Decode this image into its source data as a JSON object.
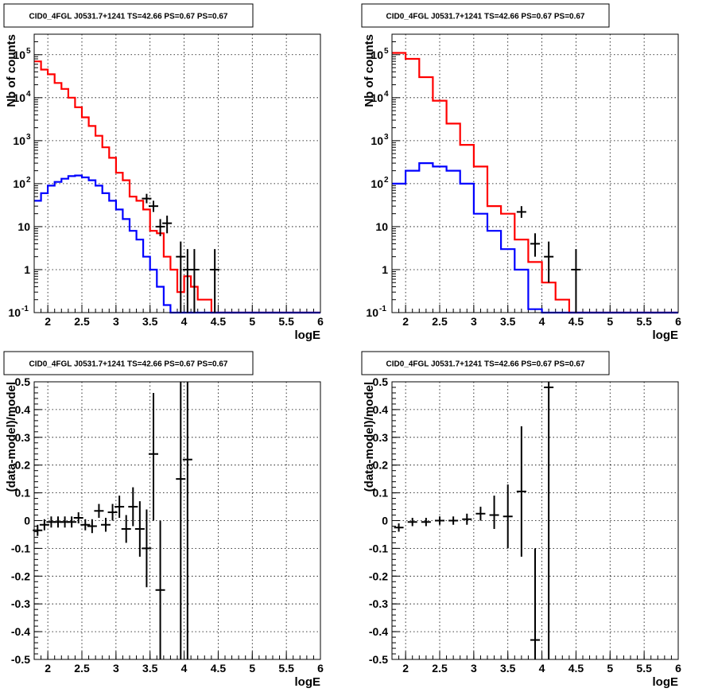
{
  "chart_data": [
    {
      "panel": "top-left",
      "type": "step-histogram",
      "title": "CID0_4FGL J0531.7+1241 TS=42.66 PS=0.67 PS=0.67",
      "xlabel": "logE",
      "ylabel": "Nb of counts",
      "xlim": [
        1.8,
        6
      ],
      "ylim": [
        0.1,
        300000
      ],
      "yscale": "log",
      "grid": true,
      "xticks": [
        "2",
        "2.5",
        "3",
        "3.5",
        "4",
        "4.5",
        "5",
        "5.5",
        "6"
      ],
      "yticks": [
        {
          "value": 0.1,
          "label": "10",
          "exp": "-1"
        },
        {
          "value": 1,
          "label": "1",
          "exp": ""
        },
        {
          "value": 10,
          "label": "10",
          "exp": ""
        },
        {
          "value": 100,
          "label": "10",
          "exp": "2"
        },
        {
          "value": 1000,
          "label": "10",
          "exp": "3"
        },
        {
          "value": 10000,
          "label": "10",
          "exp": "4"
        },
        {
          "value": 100000,
          "label": "10",
          "exp": "5"
        }
      ],
      "bin_edges": [
        1.8,
        1.9,
        2.0,
        2.1,
        2.2,
        2.3,
        2.4,
        2.5,
        2.6,
        2.7,
        2.8,
        2.9,
        3.0,
        3.1,
        3.2,
        3.3,
        3.4,
        3.5,
        3.6,
        3.7,
        3.8,
        3.9,
        4.0,
        4.1,
        4.2,
        4.3,
        4.4,
        4.5,
        4.6,
        4.7,
        4.8,
        4.9,
        5.0,
        5.1,
        5.2,
        5.3,
        5.4,
        5.5,
        5.6,
        5.7,
        5.8,
        5.9,
        6.0
      ],
      "series": [
        {
          "color": "#ff0000",
          "values": [
            70000,
            45000,
            35000,
            22000,
            16000,
            10000,
            6000,
            3500,
            2200,
            1300,
            700,
            400,
            180,
            120,
            50,
            40,
            25,
            8,
            7,
            2,
            1,
            0.3,
            0.7,
            0.4,
            0.2,
            0.2,
            0.1,
            0.1,
            0.1,
            0.1,
            0.1,
            0.1,
            0.1,
            0.1,
            0.1,
            0.1,
            0.1,
            0.1,
            0.1,
            0.1,
            0.1,
            0.1
          ]
        },
        {
          "color": "#0000ff",
          "values": [
            40,
            60,
            90,
            110,
            130,
            150,
            155,
            140,
            120,
            90,
            60,
            40,
            25,
            15,
            8,
            5,
            2,
            1,
            0.4,
            0.15,
            0.1,
            0.1,
            0.1,
            0.1,
            0.1,
            0.1,
            0.1,
            0.1,
            0.1,
            0.1,
            0.1,
            0.1,
            0.1,
            0.1,
            0.1,
            0.1,
            0.1,
            0.1,
            0.1,
            0.1,
            0.1,
            0.1
          ]
        }
      ],
      "points": [
        {
          "x": 3.45,
          "y": 45,
          "ylo": 35,
          "yhi": 58
        },
        {
          "x": 3.55,
          "y": 30,
          "ylo": 22,
          "yhi": 40
        },
        {
          "x": 3.65,
          "y": 10,
          "ylo": 6,
          "yhi": 15
        },
        {
          "x": 3.75,
          "y": 12,
          "ylo": 7,
          "yhi": 18
        },
        {
          "x": 3.95,
          "y": 2,
          "ylo": 0.1,
          "yhi": 4.5
        },
        {
          "x": 4.05,
          "y": 1,
          "ylo": 0.1,
          "yhi": 3
        },
        {
          "x": 4.15,
          "y": 1,
          "ylo": 0.1,
          "yhi": 3
        },
        {
          "x": 4.45,
          "y": 1,
          "ylo": 0.1,
          "yhi": 3
        }
      ]
    },
    {
      "panel": "top-right",
      "type": "step-histogram",
      "title": "CID0_4FGL J0531.7+1241 TS=42.66 PS=0.67 PS=0.67",
      "xlabel": "logE",
      "ylabel": "Nb of counts",
      "xlim": [
        1.8,
        6
      ],
      "ylim": [
        0.1,
        300000
      ],
      "yscale": "log",
      "grid": true,
      "xticks": [
        "2",
        "2.5",
        "3",
        "3.5",
        "4",
        "4.5",
        "5",
        "5.5",
        "6"
      ],
      "yticks": [
        {
          "value": 0.1,
          "label": "10",
          "exp": "-1"
        },
        {
          "value": 1,
          "label": "1",
          "exp": ""
        },
        {
          "value": 10,
          "label": "10",
          "exp": ""
        },
        {
          "value": 100,
          "label": "10",
          "exp": "2"
        },
        {
          "value": 1000,
          "label": "10",
          "exp": "3"
        },
        {
          "value": 10000,
          "label": "10",
          "exp": "4"
        },
        {
          "value": 100000,
          "label": "10",
          "exp": "5"
        }
      ],
      "bin_edges": [
        1.8,
        2.0,
        2.2,
        2.4,
        2.6,
        2.8,
        3.0,
        3.2,
        3.4,
        3.6,
        3.8,
        4.0,
        4.2,
        4.4,
        4.6,
        4.8,
        5.0,
        5.2,
        5.4,
        5.6,
        5.8,
        6.0
      ],
      "series": [
        {
          "color": "#ff0000",
          "values": [
            110000,
            80000,
            30000,
            8500,
            2500,
            800,
            250,
            30,
            20,
            5,
            1.5,
            0.5,
            0.2,
            0.1,
            0.1,
            0.1,
            0.1,
            0.1,
            0.1,
            0.1,
            0.1
          ]
        },
        {
          "color": "#0000ff",
          "values": [
            100,
            200,
            300,
            250,
            200,
            100,
            20,
            8,
            3,
            1,
            0.12,
            0.1,
            0.1,
            0.1,
            0.1,
            0.1,
            0.1,
            0.1,
            0.1,
            0.1,
            0.1
          ]
        }
      ],
      "points": [
        {
          "x": 3.7,
          "y": 22,
          "ylo": 16,
          "yhi": 30
        },
        {
          "x": 3.9,
          "y": 4,
          "ylo": 2,
          "yhi": 7
        },
        {
          "x": 4.1,
          "y": 2,
          "ylo": 0.5,
          "yhi": 4.5
        },
        {
          "x": 4.5,
          "y": 1,
          "ylo": 0.1,
          "yhi": 3
        }
      ]
    },
    {
      "panel": "bottom-left",
      "type": "errorbar",
      "title": "CID0_4FGL J0531.7+1241 TS=42.66 PS=0.67 PS=0.67",
      "xlabel": "logE",
      "ylabel": "(data-model)/model",
      "xlim": [
        1.8,
        6
      ],
      "ylim": [
        -0.5,
        0.5
      ],
      "grid": true,
      "xticks": [
        "2",
        "2.5",
        "3",
        "3.5",
        "4",
        "4.5",
        "5",
        "5.5",
        "6"
      ],
      "yticks": [
        "-0.5",
        "-0.4",
        "-0.3",
        "-0.2",
        "-0.1",
        "0",
        "0.1",
        "0.2",
        "0.3",
        "0.4",
        "0.5"
      ],
      "points": [
        {
          "x": 1.85,
          "y": -0.035,
          "ylo": -0.055,
          "yhi": -0.015
        },
        {
          "x": 1.95,
          "y": -0.015,
          "ylo": -0.035,
          "yhi": 0.005
        },
        {
          "x": 2.05,
          "y": -0.005,
          "ylo": -0.025,
          "yhi": 0.015
        },
        {
          "x": 2.15,
          "y": -0.005,
          "ylo": -0.025,
          "yhi": 0.015
        },
        {
          "x": 2.25,
          "y": -0.005,
          "ylo": -0.025,
          "yhi": 0.015
        },
        {
          "x": 2.35,
          "y": -0.005,
          "ylo": -0.025,
          "yhi": 0.015
        },
        {
          "x": 2.45,
          "y": 0.01,
          "ylo": -0.01,
          "yhi": 0.03
        },
        {
          "x": 2.55,
          "y": -0.015,
          "ylo": -0.035,
          "yhi": 0.005
        },
        {
          "x": 2.65,
          "y": -0.02,
          "ylo": -0.045,
          "yhi": 0.005
        },
        {
          "x": 2.75,
          "y": 0.035,
          "ylo": 0.01,
          "yhi": 0.06
        },
        {
          "x": 2.85,
          "y": -0.015,
          "ylo": -0.04,
          "yhi": 0.01
        },
        {
          "x": 2.95,
          "y": 0.03,
          "ylo": 0.0,
          "yhi": 0.06
        },
        {
          "x": 3.05,
          "y": 0.05,
          "ylo": 0.01,
          "yhi": 0.09
        },
        {
          "x": 3.15,
          "y": -0.03,
          "ylo": -0.08,
          "yhi": 0.02
        },
        {
          "x": 3.25,
          "y": 0.05,
          "ylo": -0.02,
          "yhi": 0.12
        },
        {
          "x": 3.35,
          "y": -0.03,
          "ylo": -0.13,
          "yhi": 0.07
        },
        {
          "x": 3.45,
          "y": -0.1,
          "ylo": -0.24,
          "yhi": 0.04
        },
        {
          "x": 3.55,
          "y": 0.24,
          "ylo": 0.0,
          "yhi": 0.46
        },
        {
          "x": 3.65,
          "y": -0.25,
          "ylo": -0.5,
          "yhi": -0.0
        },
        {
          "x": 3.95,
          "y": 0.15,
          "ylo": -0.5,
          "yhi": 0.5
        },
        {
          "x": 4.05,
          "y": 0.22,
          "ylo": -0.5,
          "yhi": 0.5
        }
      ]
    },
    {
      "panel": "bottom-right",
      "type": "errorbar",
      "title": "CID0_4FGL J0531.7+1241 TS=42.66 PS=0.67 PS=0.67",
      "xlabel": "logE",
      "ylabel": "(data-model)/model",
      "xlim": [
        1.8,
        6
      ],
      "ylim": [
        -0.5,
        0.5
      ],
      "grid": true,
      "xticks": [
        "2",
        "2.5",
        "3",
        "3.5",
        "4",
        "4.5",
        "5",
        "5.5",
        "6"
      ],
      "yticks": [
        "-0.5",
        "-0.4",
        "-0.3",
        "-0.2",
        "-0.1",
        "0",
        "0.1",
        "0.2",
        "0.3",
        "0.4",
        "0.5"
      ],
      "points": [
        {
          "x": 1.9,
          "y": -0.025,
          "ylo": -0.04,
          "yhi": -0.01
        },
        {
          "x": 2.1,
          "y": -0.005,
          "ylo": -0.02,
          "yhi": 0.01
        },
        {
          "x": 2.3,
          "y": -0.005,
          "ylo": -0.02,
          "yhi": 0.01
        },
        {
          "x": 2.5,
          "y": 0.0,
          "ylo": -0.015,
          "yhi": 0.015
        },
        {
          "x": 2.7,
          "y": 0.0,
          "ylo": -0.015,
          "yhi": 0.015
        },
        {
          "x": 2.9,
          "y": 0.005,
          "ylo": -0.015,
          "yhi": 0.025
        },
        {
          "x": 3.1,
          "y": 0.025,
          "ylo": 0.0,
          "yhi": 0.05
        },
        {
          "x": 3.3,
          "y": 0.02,
          "ylo": -0.03,
          "yhi": 0.09
        },
        {
          "x": 3.5,
          "y": 0.015,
          "ylo": -0.1,
          "yhi": 0.13
        },
        {
          "x": 3.7,
          "y": 0.105,
          "ylo": -0.13,
          "yhi": 0.34
        },
        {
          "x": 3.9,
          "y": -0.43,
          "ylo": -0.5,
          "yhi": -0.1
        },
        {
          "x": 4.1,
          "y": 0.48,
          "ylo": -0.5,
          "yhi": 0.5
        }
      ]
    }
  ]
}
